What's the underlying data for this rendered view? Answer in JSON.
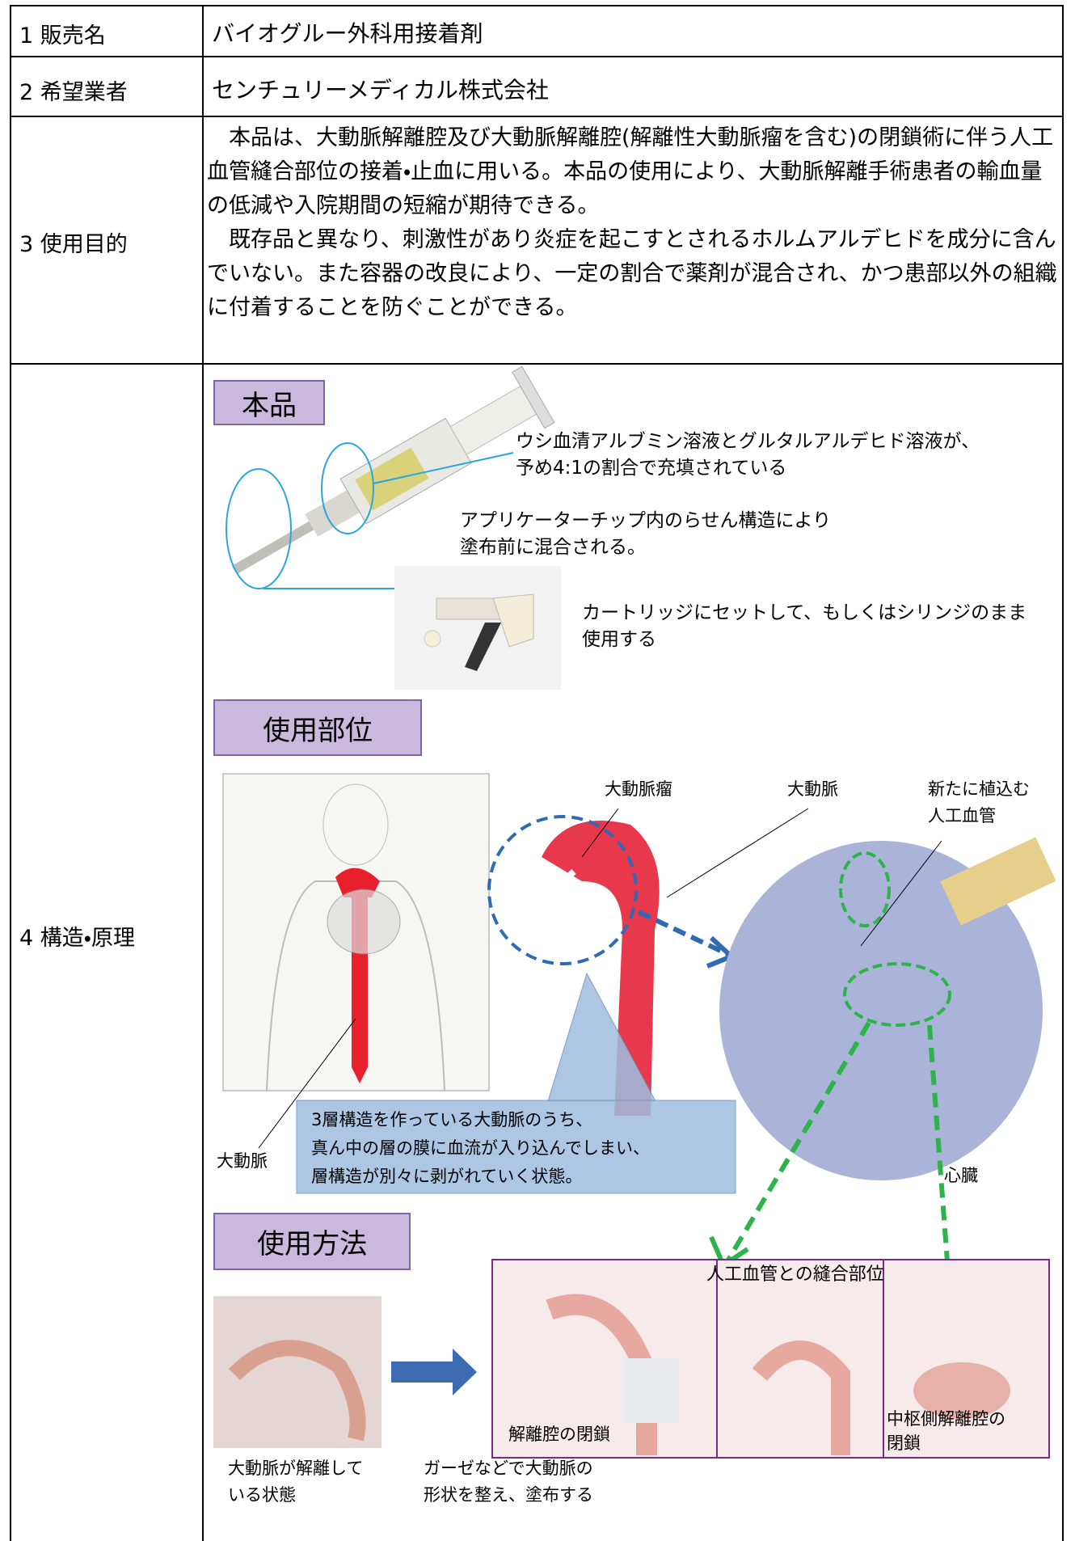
{
  "table": {
    "rows": [
      {
        "label": "1 販売名",
        "value": "バイオグルー外科用接着剤"
      },
      {
        "label": "2 希望業者",
        "value": "センチュリーメディカル株式会社"
      },
      {
        "label": "3 使用目的",
        "paragraphs": [
          "本品は、大動脈解離腔及び大動脈解離腔(解離性大動脈瘤を含む)の閉鎖術に伴う人工血管縫合部位の接着・止血に用いる。本品の使用により、大動脈解離手術患者の輸血量の低減や入院期間の短縮が期待できる。",
          "既存品と異なり、刺激性があり炎症を起こすとされるホルムアルデヒドを成分に含んでいない。また容器の改良により、一定の割合で薬剤が混合され、かつ患部以外の組織に付着することを防ぐことができる。"
        ]
      },
      {
        "label": "4 構造・原理"
      }
    ]
  },
  "figure": {
    "product": {
      "heading": "本品",
      "contents_note": [
        "ウシ血清アルブミン溶液とグルタルアルデヒド溶液が、",
        "予め4:1の割合で充填されている"
      ],
      "tip_note": [
        "アプリケーターチップ内のらせん構造により",
        "塗布前に混合される。"
      ],
      "cartridge_note": [
        "カートリッジにセットして、もしくはシリンジのまま",
        "使用する"
      ]
    },
    "site": {
      "heading": "使用部位",
      "aneurysm": "大動脈瘤",
      "aorta": "大動脈",
      "graft": [
        "新たに植込む",
        "人工血管"
      ],
      "aorta_body": "大動脈",
      "heart": "心臓",
      "callout": [
        "3層構造を作っている大動脈のうち、",
        "真ん中の層の膜に血流が入り込んでしまい、",
        "層構造が別々に剥がれていく状態。"
      ]
    },
    "method": {
      "heading": "使用方法",
      "suture_site": "人工血管との縫合部位",
      "closure": "解離腔の閉鎖",
      "central_closure": [
        "中枢側解離腔の",
        "閉鎖"
      ],
      "dissected": [
        "大動脈が解離して",
        "いる状態"
      ],
      "apply": [
        "ガーゼなどで大動脈の",
        "形状を整え、塗布する"
      ]
    }
  }
}
